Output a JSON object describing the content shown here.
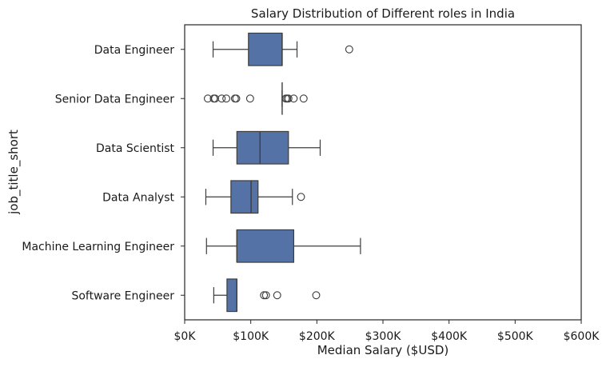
{
  "chart_data": {
    "type": "boxplot",
    "title": "Salary Distribution of Different roles in India",
    "xlabel": "Median Salary ($USD)",
    "ylabel": "job_title_short",
    "xlim": [
      0,
      600000
    ],
    "xticks": [
      0,
      100000,
      200000,
      300000,
      400000,
      500000,
      600000
    ],
    "xtick_labels": [
      "$0K",
      "$100K",
      "$200K",
      "$300K",
      "$400K",
      "$500K",
      "$600K"
    ],
    "color": "#5572a7",
    "line_color": "#3d3d3d",
    "categories": [
      "Data Engineer",
      "Senior Data Engineer",
      "Data Scientist",
      "Data Analyst",
      "Machine Learning Engineer",
      "Software Engineer"
    ],
    "boxes": [
      {
        "whisker_low": 43000,
        "q1": 96500,
        "median": 147500,
        "q3": 147500,
        "whisker_high": 170000,
        "outliers": [
          249000
        ]
      },
      {
        "whisker_low": 147500,
        "q1": 147500,
        "median": 147500,
        "q3": 147500,
        "whisker_high": 147500,
        "outliers": [
          35000,
          44000,
          46000,
          56000,
          63000,
          76000,
          78000,
          99000,
          153000,
          155000,
          157000,
          165000,
          180000
        ]
      },
      {
        "whisker_low": 43000,
        "q1": 79000,
        "median": 114000,
        "q3": 157000,
        "whisker_high": 205000,
        "outliers": []
      },
      {
        "whisker_low": 32000,
        "q1": 70000,
        "median": 100500,
        "q3": 111000,
        "whisker_high": 163000,
        "outliers": [
          176000
        ]
      },
      {
        "whisker_low": 33000,
        "q1": 79000,
        "median": 79000,
        "q3": 165000,
        "whisker_high": 266000,
        "outliers": []
      },
      {
        "whisker_low": 44000,
        "q1": 64000,
        "median": 79000,
        "q3": 79000,
        "whisker_high": 79000,
        "outliers": [
          120000,
          123000,
          140000,
          199000
        ]
      }
    ]
  }
}
